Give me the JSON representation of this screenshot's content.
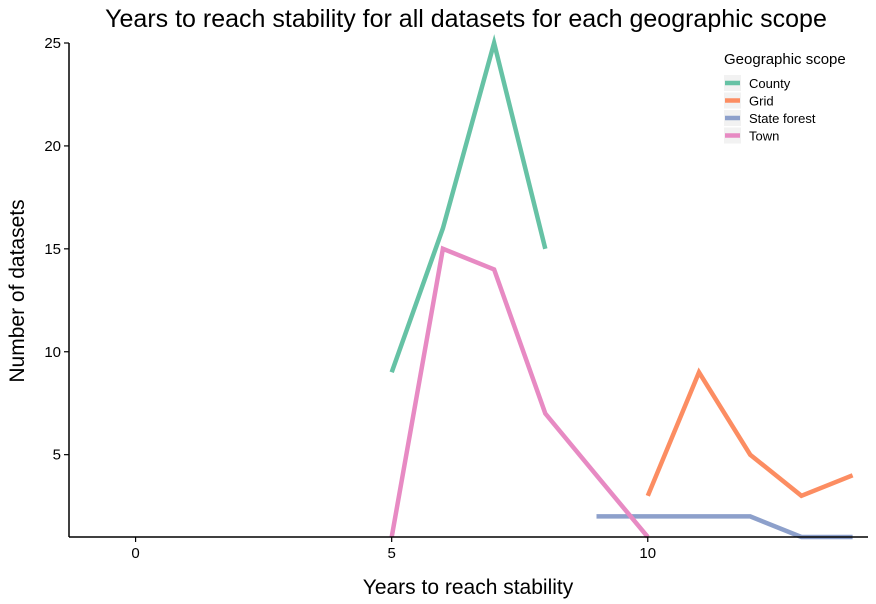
{
  "chart_data": {
    "type": "line",
    "title": "Years to reach stability for all datasets for each geographic scope",
    "xlabel": "Years to reach stability",
    "ylabel": "Number of datasets",
    "xlim": [
      -1.3,
      14.3
    ],
    "ylim": [
      1,
      25
    ],
    "x_ticks": [
      0,
      5,
      10
    ],
    "y_ticks": [
      5,
      10,
      15,
      20,
      25
    ],
    "grid": false,
    "legend": {
      "title": "Geographic scope",
      "position": "top-right"
    },
    "series": [
      {
        "name": "County",
        "color": "#66c2a5",
        "points": [
          [
            5,
            9
          ],
          [
            6,
            16
          ],
          [
            7,
            25
          ],
          [
            8,
            15
          ]
        ]
      },
      {
        "name": "Grid",
        "color": "#fc8d62",
        "points": [
          [
            10,
            3
          ],
          [
            11,
            9
          ],
          [
            12,
            5
          ],
          [
            13,
            3
          ],
          [
            14,
            4
          ]
        ]
      },
      {
        "name": "State forest",
        "color": "#8da0cb",
        "points": [
          [
            9,
            2
          ],
          [
            10,
            2
          ],
          [
            11,
            2
          ],
          [
            12,
            2
          ],
          [
            13,
            1
          ],
          [
            14,
            1
          ]
        ]
      },
      {
        "name": "Town",
        "color": "#e78ac3",
        "points": [
          [
            5,
            1
          ],
          [
            6,
            15
          ],
          [
            7,
            14
          ],
          [
            8,
            7
          ],
          [
            9,
            4
          ],
          [
            10,
            1
          ]
        ]
      }
    ]
  }
}
